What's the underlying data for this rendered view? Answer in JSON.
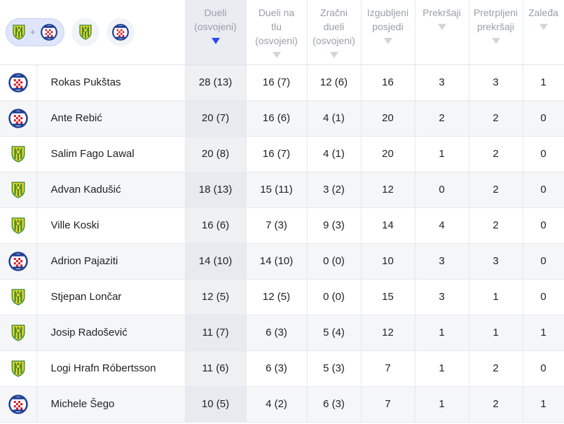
{
  "filters": {
    "both_label": "+",
    "team_a": "istra-badge-icon",
    "team_b": "hajduk-badge-icon"
  },
  "columns": [
    {
      "key": "duels",
      "label": "Dueli\n(osvojeni)",
      "sorted": true
    },
    {
      "key": "ground",
      "label": "Dueli na\ntlu\n(osvojeni)",
      "sorted": false
    },
    {
      "key": "aerial",
      "label": "Zračni\ndueli\n(osvojeni)",
      "sorted": false
    },
    {
      "key": "lost",
      "label": "Izgubljeni\nposjedi",
      "sorted": false
    },
    {
      "key": "fouls",
      "label": "Prekršaji",
      "sorted": false
    },
    {
      "key": "fouled",
      "label": "Pretrpljeni\nprekršaji",
      "sorted": false
    },
    {
      "key": "offsides",
      "label": "Zaleđa",
      "sorted": false
    }
  ],
  "rows": [
    {
      "team": "hajduk",
      "name": "Rokas Pukštas",
      "duels": "28 (13)",
      "ground": "16 (7)",
      "aerial": "12 (6)",
      "lost": "16",
      "fouls": "3",
      "fouled": "3",
      "offsides": "1"
    },
    {
      "team": "hajduk",
      "name": "Ante Rebić",
      "duels": "20 (7)",
      "ground": "16 (6)",
      "aerial": "4 (1)",
      "lost": "20",
      "fouls": "2",
      "fouled": "2",
      "offsides": "0"
    },
    {
      "team": "istra",
      "name": "Salim Fago Lawal",
      "duels": "20 (8)",
      "ground": "16 (7)",
      "aerial": "4 (1)",
      "lost": "20",
      "fouls": "1",
      "fouled": "2",
      "offsides": "0"
    },
    {
      "team": "istra",
      "name": "Advan Kadušić",
      "duels": "18 (13)",
      "ground": "15 (11)",
      "aerial": "3 (2)",
      "lost": "12",
      "fouls": "0",
      "fouled": "2",
      "offsides": "0"
    },
    {
      "team": "istra",
      "name": "Ville Koski",
      "duels": "16 (6)",
      "ground": "7 (3)",
      "aerial": "9 (3)",
      "lost": "14",
      "fouls": "4",
      "fouled": "2",
      "offsides": "0"
    },
    {
      "team": "hajduk",
      "name": "Adrion Pajaziti",
      "duels": "14 (10)",
      "ground": "14 (10)",
      "aerial": "0 (0)",
      "lost": "10",
      "fouls": "3",
      "fouled": "3",
      "offsides": "0"
    },
    {
      "team": "istra",
      "name": "Stjepan Lončar",
      "duels": "12 (5)",
      "ground": "12 (5)",
      "aerial": "0 (0)",
      "lost": "15",
      "fouls": "3",
      "fouled": "1",
      "offsides": "0"
    },
    {
      "team": "istra",
      "name": "Josip Radošević",
      "duels": "11 (7)",
      "ground": "6 (3)",
      "aerial": "5 (4)",
      "lost": "12",
      "fouls": "1",
      "fouled": "1",
      "offsides": "1"
    },
    {
      "team": "istra",
      "name": "Logi Hrafn Róbertsson",
      "duels": "11 (6)",
      "ground": "6 (3)",
      "aerial": "5 (3)",
      "lost": "7",
      "fouls": "1",
      "fouled": "2",
      "offsides": "0"
    },
    {
      "team": "hajduk",
      "name": "Michele Šego",
      "duels": "10 (5)",
      "ground": "4 (2)",
      "aerial": "6 (3)",
      "lost": "7",
      "fouls": "1",
      "fouled": "2",
      "offsides": "1"
    }
  ],
  "colors": {
    "istra_yellow": "#f4d21e",
    "istra_green": "#2f8a3a",
    "hajduk_red": "#d6202a",
    "hajduk_blue": "#1f3f95",
    "sort_active": "#2949e8"
  }
}
